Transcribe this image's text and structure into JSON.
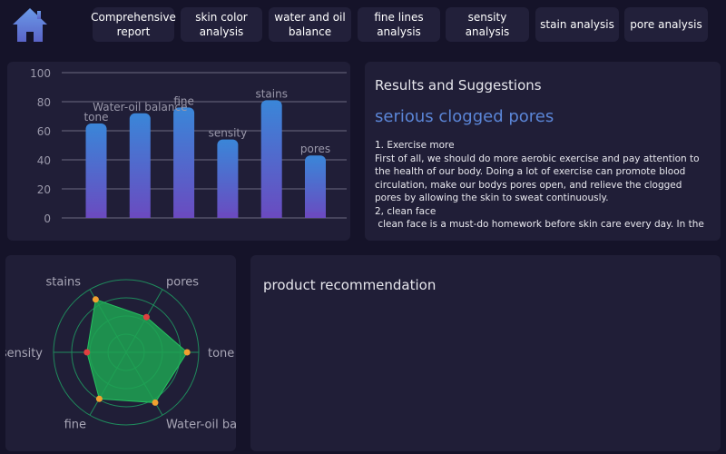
{
  "nav": {
    "home_icon": "home-icon",
    "tabs": [
      {
        "label": "Comprehensive report",
        "active": true
      },
      {
        "label": "skin color analysis",
        "active": false
      },
      {
        "label": "water and oil balance",
        "active": false
      },
      {
        "label": "fine lines analysis",
        "active": false
      },
      {
        "label": "sensity analysis",
        "active": false
      },
      {
        "label": "stain analysis",
        "active": false
      },
      {
        "label": "pore analysis",
        "active": false
      }
    ]
  },
  "colors": {
    "accent_gradient_top": "#4a8cd6",
    "accent_gradient_bottom": "#5a5bc4",
    "bar_top": "#3a86d8",
    "bar_bottom": "#6a4bc0",
    "radar_fill": "#1fa352",
    "radar_rings": "#1f8a5c",
    "dot_orange": "#f0a030",
    "dot_red": "#e04040",
    "headline": "#5b86d8"
  },
  "chart_data": [
    {
      "type": "bar",
      "categories": [
        "tone",
        "Water-oil balance",
        "fine",
        "sensity",
        "stains",
        "pores"
      ],
      "values": [
        65,
        72,
        76,
        54,
        81,
        43
      ],
      "ylim": [
        0,
        100
      ],
      "yticks": [
        "0",
        "20",
        "40",
        "60",
        "80",
        "100"
      ],
      "grid": true
    },
    {
      "type": "radar",
      "axes": [
        "tone",
        "Water-oil bala",
        "fine",
        "sensity",
        "stains",
        "pores"
      ],
      "values": [
        0.84,
        0.8,
        0.74,
        0.54,
        0.84,
        0.56
      ],
      "point_colors": [
        "orange",
        "orange",
        "orange",
        "red",
        "orange",
        "red"
      ]
    }
  ],
  "results": {
    "title": "Results and Suggestions",
    "headline": "serious clogged pores",
    "lines": [
      "1. Exercise more",
      "First of all, we should do more aerobic exercise and pay attention to the health of our body. Doing a lot of exercise can promote blood circulation, make our bodys pores open, and relieve the clogged pores by allowing the skin to sweat continuously.",
      "2, clean face",
      " clean face is a must-do homework before skin care every day. In the"
    ]
  },
  "products": {
    "title": "product recommendation"
  }
}
